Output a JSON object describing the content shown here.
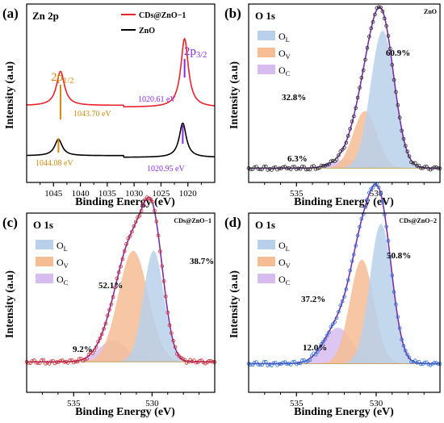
{
  "figure": {
    "panels": [
      {
        "id": "a",
        "label": "(a)",
        "title": "Zn 2p",
        "xlabel": "Binding Energy (eV)",
        "ylabel": "Intensity (a.u)"
      },
      {
        "id": "b",
        "label": "(b)",
        "title": "O 1s",
        "sample": "ZnO",
        "xlabel": "Binding Energy (eV)",
        "ylabel": "Intensity (a.u)"
      },
      {
        "id": "c",
        "label": "(c)",
        "title": "O 1s",
        "sample": "CDs@ZnO−1",
        "xlabel": "Binding Energy (eV)",
        "ylabel": "Intensity (a.u)"
      },
      {
        "id": "d",
        "label": "(d)",
        "title": "O 1s",
        "sample": "CDs@ZnO−2",
        "xlabel": "Binding Energy (eV)",
        "ylabel": "Intensity (a.u)"
      }
    ]
  },
  "chart_data": [
    {
      "panel": "a",
      "type": "line",
      "title": "Zn 2p",
      "xlabel": "Binding Energy (eV)",
      "ylabel": "Intensity (a.u)",
      "xlim": [
        1050,
        1015
      ],
      "xticks": [
        1045,
        1040,
        1035,
        1030,
        1025,
        1020
      ],
      "legend_position": "top-right",
      "series": [
        {
          "name": "CDs@ZnO−1",
          "color": "#e8222a",
          "baseline": 0.55,
          "peaks": [
            {
              "center": 1043.7,
              "height": 0.25,
              "width": 0.9
            },
            {
              "center": 1020.61,
              "height": 0.5,
              "width": 0.85
            }
          ]
        },
        {
          "name": "ZnO",
          "color": "#000000",
          "baseline": 0.0,
          "peaks": [
            {
              "center": 1044.08,
              "height": 0.12,
              "width": 0.85
            },
            {
              "center": 1020.95,
              "height": 0.25,
              "width": 0.8
            }
          ]
        }
      ],
      "annotations": [
        {
          "text": "1043.70 eV",
          "x": 1043.7,
          "color": "#d4890a"
        },
        {
          "text": "1020.61 eV",
          "x": 1020.61,
          "color": "#8a2be2"
        },
        {
          "text": "1044.08 eV",
          "x": 1044.08,
          "color": "#d4890a"
        },
        {
          "text": "1020.95 eV",
          "x": 1020.95,
          "color": "#8a2be2"
        }
      ],
      "peak_labels": [
        {
          "main": "2p",
          "sub": "1/2",
          "color": "#d4890a"
        },
        {
          "main": "2p",
          "sub": "3/2",
          "color": "#8a2be2"
        }
      ]
    },
    {
      "panel": "b",
      "type": "area",
      "title": "O 1s",
      "sample": "ZnO",
      "xlabel": "Binding Energy (eV)",
      "ylabel": "Intensity (a.u)",
      "xlim": [
        538,
        526
      ],
      "xticks": [
        535,
        530
      ],
      "legend_position": "top-left",
      "components": [
        {
          "name": "O_L",
          "main": "O",
          "sub": "L",
          "center": 529.6,
          "height": 0.77,
          "width": 0.75,
          "color": "#b8d0ea",
          "percent": "60.9%"
        },
        {
          "name": "O_V",
          "main": "O",
          "sub": "V",
          "center": 530.7,
          "height": 0.32,
          "width": 0.75,
          "color": "#f6bd95",
          "percent": "32.8%"
        },
        {
          "name": "O_C",
          "main": "O",
          "sub": "C",
          "center": 531.8,
          "height": 0.05,
          "width": 0.9,
          "color": "#d7bcef",
          "percent": "6.3%"
        }
      ]
    },
    {
      "panel": "c",
      "type": "area",
      "title": "O 1s",
      "sample": "CDs@ZnO−1",
      "xlabel": "Binding Energy (eV)",
      "ylabel": "Intensity (a.u)",
      "xlim": [
        538,
        526
      ],
      "xticks": [
        535,
        530
      ],
      "legend_position": "top-left",
      "components": [
        {
          "name": "O_L",
          "main": "O",
          "sub": "L",
          "center": 529.9,
          "height": 0.62,
          "width": 0.65,
          "color": "#b8d0ea",
          "percent": "38.7%"
        },
        {
          "name": "O_V",
          "main": "O",
          "sub": "V",
          "center": 531.2,
          "height": 0.62,
          "width": 0.95,
          "color": "#f6bd95",
          "percent": "52.1%"
        },
        {
          "name": "O_C",
          "main": "O",
          "sub": "C",
          "center": 532.5,
          "height": 0.12,
          "width": 0.9,
          "color": "#d7bcef",
          "percent": "9.2%"
        }
      ]
    },
    {
      "panel": "d",
      "type": "area",
      "title": "O 1s",
      "sample": "CDs@ZnO−2",
      "xlabel": "Binding Energy (eV)",
      "ylabel": "Intensity (a.u)",
      "xlim": [
        538,
        526
      ],
      "xticks": [
        535,
        530
      ],
      "legend_position": "top-left",
      "components": [
        {
          "name": "O_L",
          "main": "O",
          "sub": "L",
          "center": 529.7,
          "height": 0.78,
          "width": 0.7,
          "color": "#b8d0ea",
          "percent": "50.8%"
        },
        {
          "name": "O_V",
          "main": "O",
          "sub": "V",
          "center": 530.9,
          "height": 0.58,
          "width": 0.75,
          "color": "#f6bd95",
          "percent": "37.2%"
        },
        {
          "name": "O_C",
          "main": "O",
          "sub": "C",
          "center": 532.4,
          "height": 0.2,
          "width": 0.9,
          "color": "#d7bcef",
          "percent": "12.0%"
        }
      ]
    }
  ]
}
